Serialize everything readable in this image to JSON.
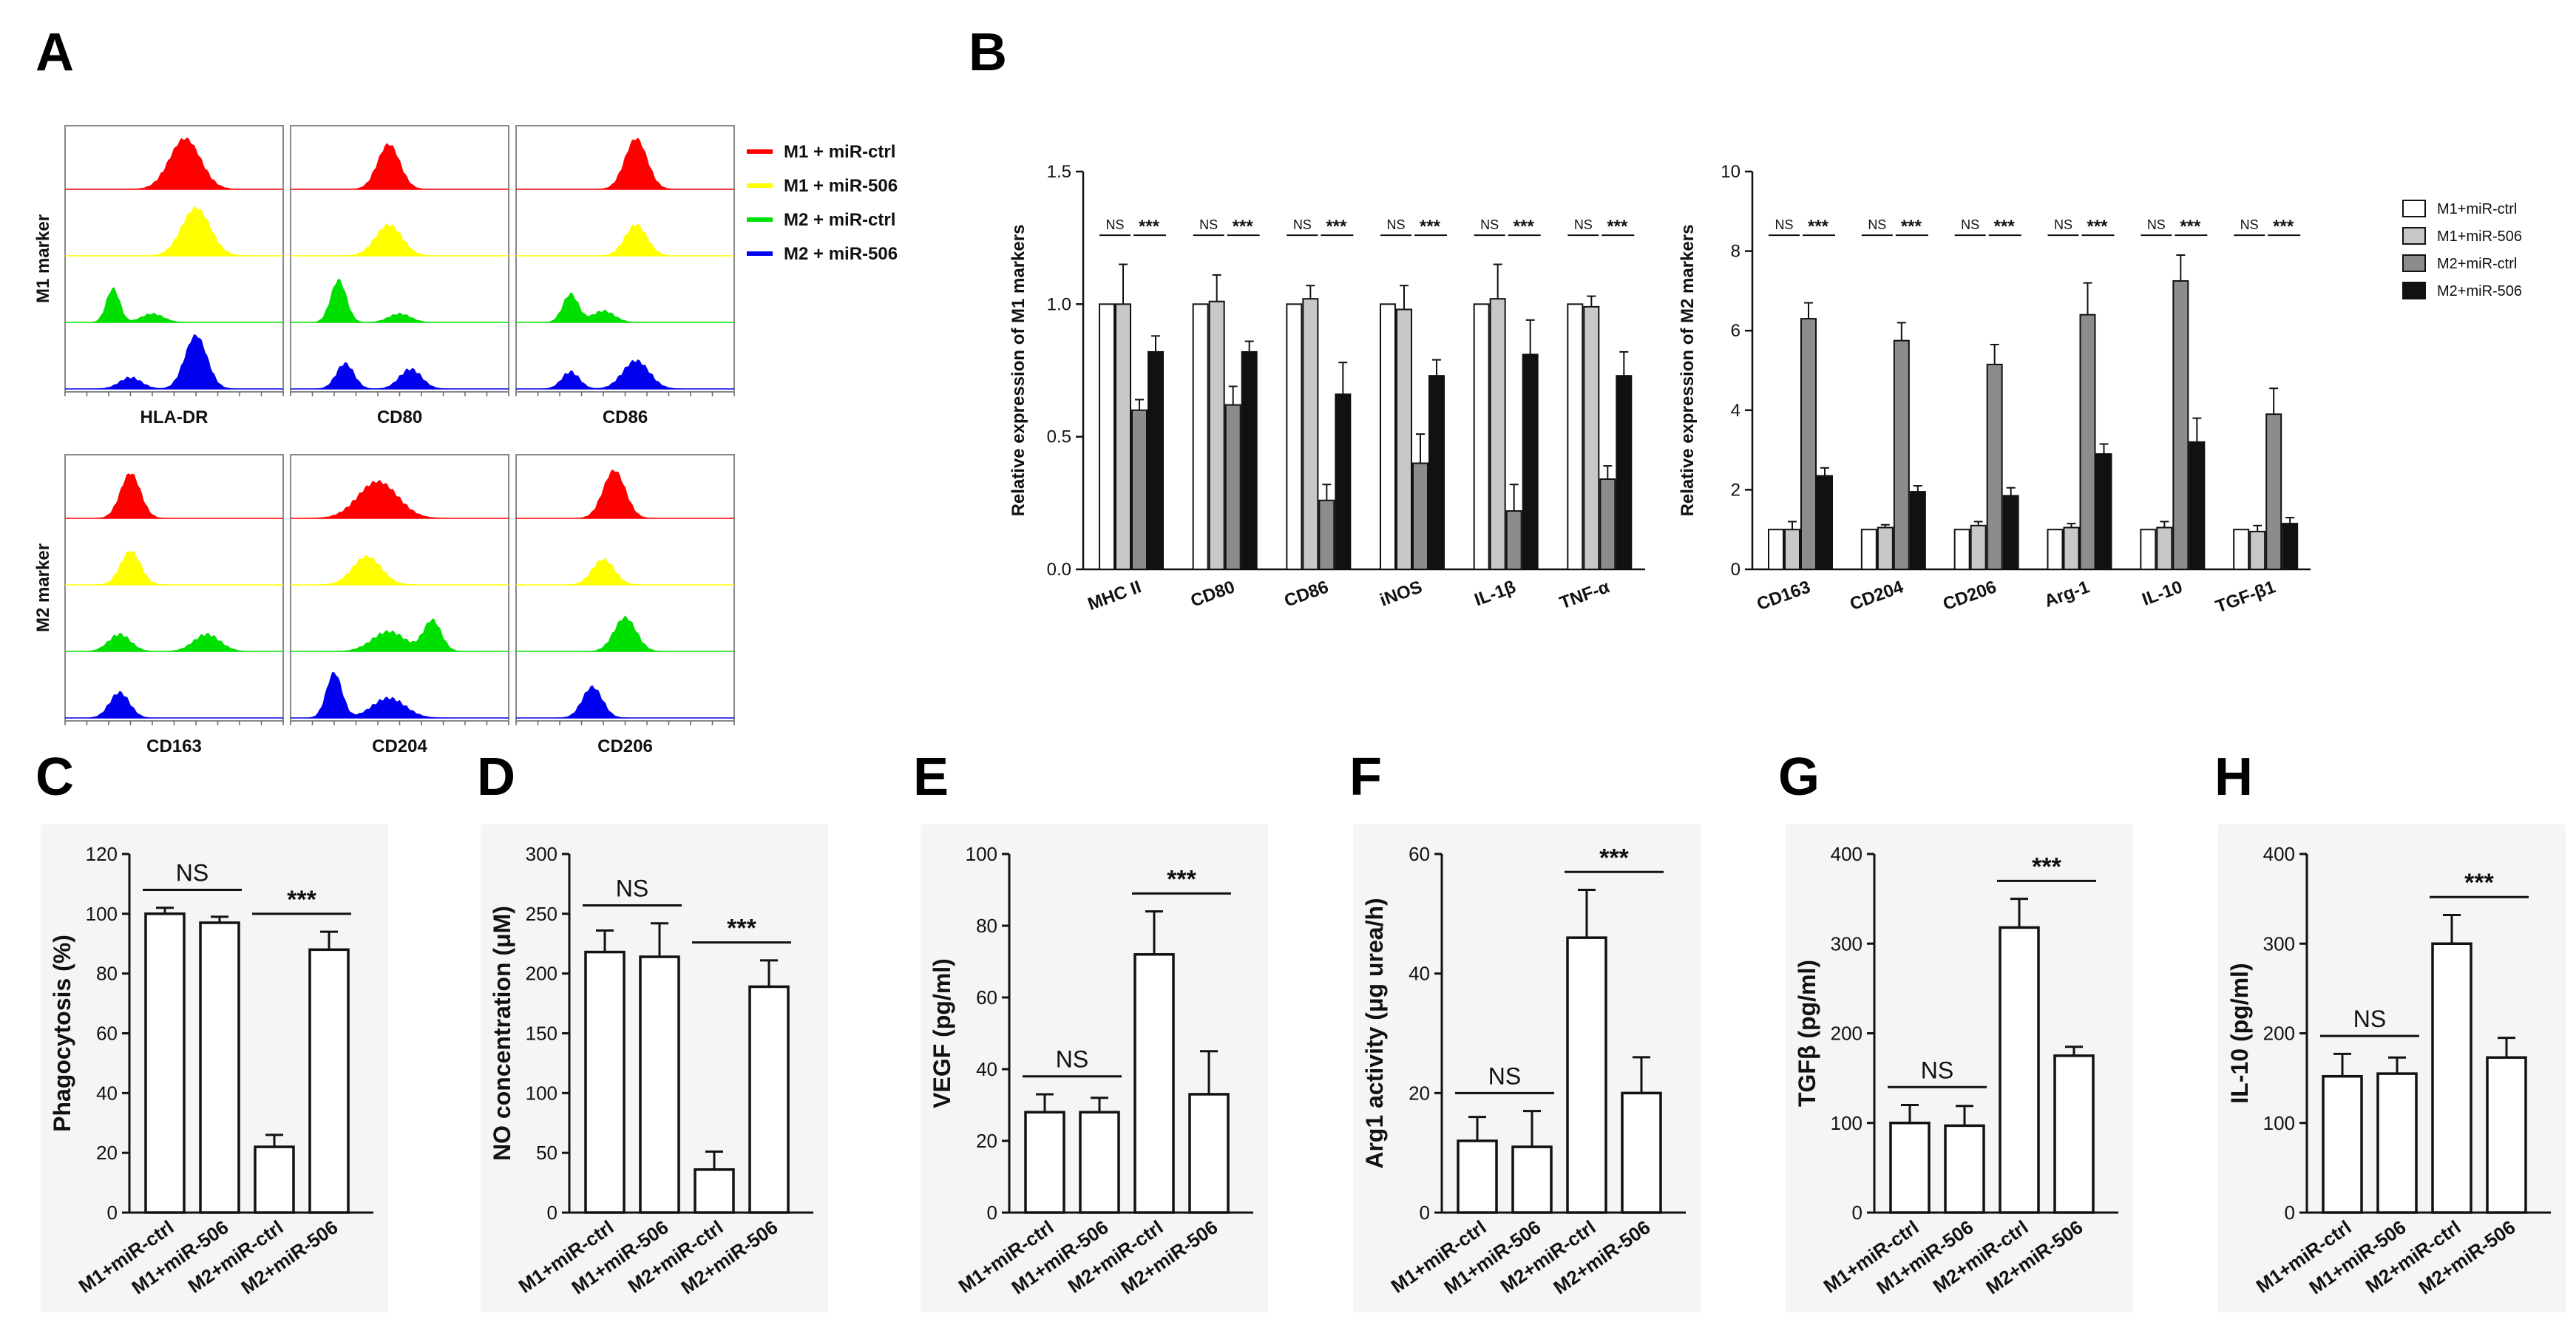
{
  "colors": {
    "red": "#ff0000",
    "yellow": "#ffff00",
    "green": "#00e000",
    "blue": "#0000ee",
    "white_bar": "#ffffff",
    "light_gray_bar": "#c8c8c8",
    "gray_bar": "#8c8c8c",
    "black_bar": "#111111"
  },
  "panel_labels": {
    "A": "A",
    "B": "B",
    "C": "C",
    "D": "D",
    "E": "E",
    "F": "F",
    "G": "G",
    "H": "H"
  },
  "panel_A": {
    "row_labels": [
      "M1 marker",
      "M2 marker"
    ],
    "m1_markers": [
      "HLA-DR",
      "CD80",
      "CD86"
    ],
    "m2_markers": [
      "CD163",
      "CD204",
      "CD206"
    ],
    "legend": [
      {
        "label": "M1 + miR-ctrl",
        "color": "#ff0000"
      },
      {
        "label": "M1 + miR-506",
        "color": "#ffff00"
      },
      {
        "label": "M2 + miR-ctrl",
        "color": "#00e000"
      },
      {
        "label": "M2 + miR-506",
        "color": "#0000ee"
      }
    ]
  },
  "chart_data": [
    {
      "id": "B1",
      "type": "bar",
      "ylabel": "Relative expression of M1 markers",
      "ylim": [
        0,
        1.5
      ],
      "yticks": [
        "0.0",
        "0.5",
        "1.0",
        "1.5"
      ],
      "ytick_values": [
        0,
        0.5,
        1.0,
        1.5
      ],
      "categories": [
        "MHC II",
        "CD80",
        "CD86",
        "iNOS",
        "IL-1β",
        "TNF-α"
      ],
      "series": [
        {
          "name": "M1+miR-ctrl",
          "color": "#ffffff",
          "values": [
            1.0,
            1.0,
            1.0,
            1.0,
            1.0,
            1.0
          ],
          "errors": [
            0,
            0,
            0,
            0,
            0,
            0
          ]
        },
        {
          "name": "M1+miR-506",
          "color": "#c8c8c8",
          "values": [
            1.0,
            1.01,
            1.02,
            0.98,
            1.02,
            0.99
          ],
          "errors": [
            0.15,
            0.1,
            0.05,
            0.09,
            0.13,
            0.04
          ]
        },
        {
          "name": "M2+miR-ctrl",
          "color": "#8c8c8c",
          "values": [
            0.6,
            0.62,
            0.26,
            0.4,
            0.22,
            0.34
          ],
          "errors": [
            0.04,
            0.07,
            0.06,
            0.11,
            0.1,
            0.05
          ]
        },
        {
          "name": "M2+miR-506",
          "color": "#111111",
          "values": [
            0.82,
            0.82,
            0.66,
            0.73,
            0.81,
            0.73
          ],
          "errors": [
            0.06,
            0.04,
            0.12,
            0.06,
            0.13,
            0.09
          ]
        }
      ],
      "annotations": [
        {
          "ns": "NS",
          "sig": "***"
        }
      ]
    },
    {
      "id": "B2",
      "type": "bar",
      "ylabel": "Relative expression of M2 markers",
      "ylim": [
        0,
        10
      ],
      "yticks": [
        "0",
        "2",
        "4",
        "6",
        "8",
        "10"
      ],
      "ytick_values": [
        0,
        2,
        4,
        6,
        8,
        10
      ],
      "categories": [
        "CD163",
        "CD204",
        "CD206",
        "Arg-1",
        "IL-10",
        "TGF-β1"
      ],
      "legend": [
        "M1+miR-ctrl",
        "M1+miR-506",
        "M2+miR-ctrl",
        "M2+miR-506"
      ],
      "series": [
        {
          "name": "M1+miR-ctrl",
          "color": "#ffffff",
          "values": [
            1.0,
            1.0,
            1.0,
            1.0,
            1.0,
            1.0
          ],
          "errors": [
            0,
            0,
            0,
            0,
            0,
            0
          ]
        },
        {
          "name": "M1+miR-506",
          "color": "#c8c8c8",
          "values": [
            1.0,
            1.05,
            1.1,
            1.05,
            1.05,
            0.95
          ],
          "errors": [
            0.2,
            0.07,
            0.1,
            0.1,
            0.15,
            0.15
          ]
        },
        {
          "name": "M2+miR-ctrl",
          "color": "#8c8c8c",
          "values": [
            6.3,
            5.75,
            5.15,
            6.4,
            7.25,
            3.9
          ],
          "errors": [
            0.4,
            0.45,
            0.5,
            0.8,
            0.65,
            0.65
          ]
        },
        {
          "name": "M2+miR-506",
          "color": "#111111",
          "values": [
            2.35,
            1.95,
            1.85,
            2.9,
            3.2,
            1.15
          ],
          "errors": [
            0.2,
            0.15,
            0.2,
            0.25,
            0.6,
            0.15
          ]
        }
      ],
      "annotations": [
        {
          "ns": "NS",
          "sig": "***"
        }
      ]
    },
    {
      "id": "C",
      "type": "bar",
      "ylabel": "Phagocytosis (%)",
      "ylim": [
        0,
        120
      ],
      "yticks": [
        "0",
        "20",
        "40",
        "60",
        "80",
        "100",
        "120"
      ],
      "ytick_values": [
        0,
        20,
        40,
        60,
        80,
        100,
        120
      ],
      "categories": [
        "M1+miR-ctrl",
        "M1+miR-506",
        "M2+miR-ctrl",
        "M2+miR-506"
      ],
      "values": [
        100,
        97,
        22,
        88
      ],
      "errors": [
        2,
        2,
        4,
        6
      ],
      "ns": "NS",
      "sig": "***"
    },
    {
      "id": "D",
      "type": "bar",
      "ylabel": "NO concentration (μM)",
      "ylim": [
        0,
        300
      ],
      "yticks": [
        "0",
        "50",
        "100",
        "150",
        "200",
        "250",
        "300"
      ],
      "ytick_values": [
        0,
        50,
        100,
        150,
        200,
        250,
        300
      ],
      "categories": [
        "M1+miR-ctrl",
        "M1+miR-506",
        "M2+miR-ctrl",
        "M2+miR-506"
      ],
      "values": [
        218,
        214,
        36,
        189
      ],
      "errors": [
        18,
        28,
        15,
        22
      ],
      "ns": "NS",
      "sig": "***"
    },
    {
      "id": "E",
      "type": "bar",
      "ylabel": "VEGF (pg/ml)",
      "ylim": [
        0,
        100
      ],
      "yticks": [
        "0",
        "20",
        "40",
        "60",
        "80",
        "100"
      ],
      "ytick_values": [
        0,
        20,
        40,
        60,
        80,
        100
      ],
      "categories": [
        "M1+miR-ctrl",
        "M1+miR-506",
        "M2+miR-ctrl",
        "M2+miR-506"
      ],
      "values": [
        28,
        28,
        72,
        33
      ],
      "errors": [
        5,
        4,
        12,
        12
      ],
      "ns": "NS",
      "sig": "***"
    },
    {
      "id": "F",
      "type": "bar",
      "ylabel": "Arg1 activity (μg urea/h)",
      "ylim": [
        0,
        60
      ],
      "yticks": [
        "0",
        "20",
        "40",
        "60"
      ],
      "ytick_values": [
        0,
        20,
        40,
        60
      ],
      "categories": [
        "M1+miR-ctrl",
        "M1+miR-506",
        "M2+miR-ctrl",
        "M2+miR-506"
      ],
      "values": [
        12,
        11,
        46,
        20
      ],
      "errors": [
        4,
        6,
        8,
        6
      ],
      "ns": "NS",
      "sig": "***"
    },
    {
      "id": "G",
      "type": "bar",
      "ylabel": "TGFβ (pg/ml)",
      "ylim": [
        0,
        400
      ],
      "yticks": [
        "0",
        "100",
        "200",
        "300",
        "400"
      ],
      "ytick_values": [
        0,
        100,
        200,
        300,
        400
      ],
      "categories": [
        "M1+miR-ctrl",
        "M1+miR-506",
        "M2+miR-ctrl",
        "M2+miR-506"
      ],
      "values": [
        100,
        97,
        318,
        175
      ],
      "errors": [
        20,
        22,
        32,
        10
      ],
      "ns": "NS",
      "sig": "***"
    },
    {
      "id": "H",
      "type": "bar",
      "ylabel": "IL-10 (pg/ml)",
      "ylim": [
        0,
        400
      ],
      "yticks": [
        "0",
        "100",
        "200",
        "300",
        "400"
      ],
      "ytick_values": [
        0,
        100,
        200,
        300,
        400
      ],
      "categories": [
        "M1+miR-ctrl",
        "M1+miR-506",
        "M2+miR-ctrl",
        "M2+miR-506"
      ],
      "values": [
        152,
        155,
        300,
        173
      ],
      "errors": [
        25,
        18,
        32,
        22
      ],
      "ns": "NS",
      "sig": "***"
    }
  ]
}
